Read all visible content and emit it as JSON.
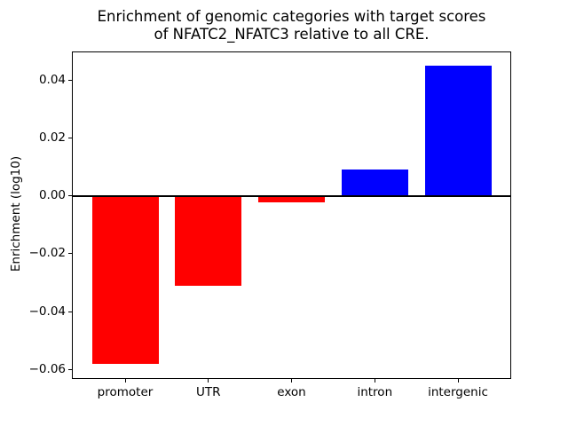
{
  "chart_data": {
    "type": "bar",
    "title": "Enrichment of genomic categories with target scores\nof NFATC2_NFATC3 relative to all CRE.",
    "title_lines": [
      "Enrichment of genomic categories with target scores",
      "of NFATC2_NFATC3 relative to all CRE."
    ],
    "xlabel": "",
    "ylabel": "Enrichment (log10)",
    "categories": [
      "promoter",
      "UTR",
      "exon",
      "intron",
      "intergenic"
    ],
    "values": [
      -0.058,
      -0.0312,
      -0.0024,
      0.0092,
      0.045
    ],
    "positive_color": "#0000ff",
    "negative_color": "#ff0000",
    "ylim": [
      -0.0633,
      0.0498
    ],
    "yticks": [
      0.04,
      0.02,
      0.0,
      -0.02,
      -0.04,
      -0.06
    ],
    "ytick_labels": [
      "0.04",
      "0.02",
      "0.00",
      "−0.02",
      "−0.04",
      "−0.06"
    ],
    "bar_width_fraction": 0.8,
    "zero_line": true,
    "grid": false,
    "legend": null,
    "axis_color": "#000000",
    "background_color": "#ffffff"
  }
}
